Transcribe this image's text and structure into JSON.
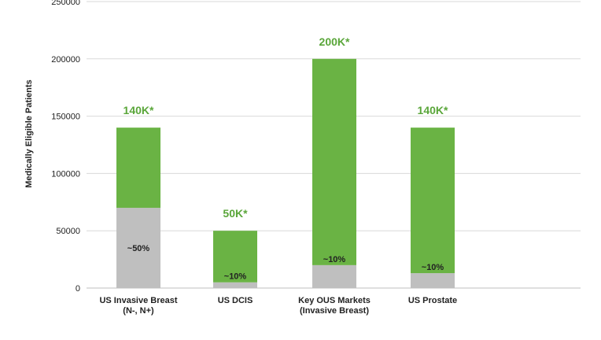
{
  "chart_data": {
    "type": "bar",
    "stacked": true,
    "ylabel": "Medically Eligible Patients",
    "ylim": [
      0,
      250000
    ],
    "yticks": [
      "0",
      "50000",
      "100000",
      "150000",
      "200000",
      "250000"
    ],
    "ytick_values": [
      0,
      50000,
      100000,
      150000,
      200000,
      250000
    ],
    "grid": true,
    "categories": [
      [
        "US Invasive Breast",
        "(N-, N+)"
      ],
      [
        "US DCIS"
      ],
      [
        "Key OUS Markets",
        "(Invasive Breast)"
      ],
      [
        "US Prostate"
      ]
    ],
    "series": [
      {
        "values": [
          70000,
          5000,
          20000,
          13000
        ]
      },
      {
        "values": [
          70000,
          45000,
          180000,
          127000
        ]
      }
    ],
    "totals": [
      140000,
      50000,
      200000,
      140000
    ],
    "total_labels": [
      "140K*",
      "50K*",
      "200K*",
      "140K*"
    ],
    "share_labels": [
      "~50%",
      "~10%",
      "~10%",
      "~10%"
    ],
    "colors": {
      "lower": "#bfbfbf",
      "upper": "#6ab344",
      "total_label": "#5aa63a",
      "grid": "#d9d9d9",
      "axis": "#bfbfbf"
    }
  }
}
